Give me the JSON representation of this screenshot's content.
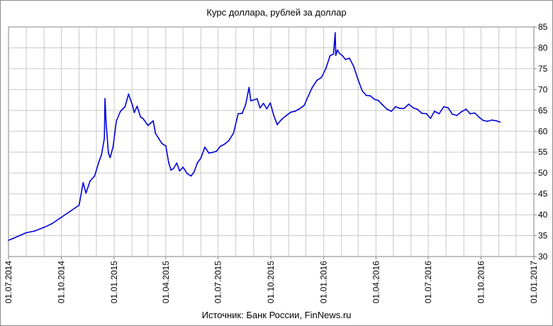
{
  "chart_data": {
    "type": "line",
    "title": "Курс доллара,  рублей за доллар",
    "source": "Источник: Банк России, FinNews.ru",
    "ylim": [
      30,
      85
    ],
    "yticks": [
      30,
      35,
      40,
      45,
      50,
      55,
      60,
      65,
      70,
      75,
      80,
      85
    ],
    "xlim": [
      "2014-07-01",
      "2017-01-01"
    ],
    "xticks": [
      "01.07.2014",
      "01.10.2014",
      "01.01.2015",
      "01.04.2015",
      "01.07.2015",
      "01.10.2015",
      "01.01.2016",
      "01.04.2016",
      "01.07.2016",
      "01.10.2016",
      "01.01.2017"
    ],
    "grid": true,
    "series": [
      {
        "color": "#0000dd",
        "x": [
          "2014-07-01",
          "2014-07-10",
          "2014-07-20",
          "2014-08-01",
          "2014-08-15",
          "2014-09-01",
          "2014-09-15",
          "2014-10-01",
          "2014-10-15",
          "2014-11-01",
          "2014-11-08",
          "2014-11-13",
          "2014-11-20",
          "2014-11-28",
          "2014-12-05",
          "2014-12-10",
          "2014-12-15",
          "2014-12-16",
          "2014-12-18",
          "2014-12-22",
          "2014-12-25",
          "2014-12-30",
          "2015-01-05",
          "2015-01-12",
          "2015-01-20",
          "2015-01-26",
          "2015-02-02",
          "2015-02-05",
          "2015-02-10",
          "2015-02-16",
          "2015-02-20",
          "2015-03-01",
          "2015-03-05",
          "2015-03-10",
          "2015-03-14",
          "2015-03-20",
          "2015-03-25",
          "2015-04-01",
          "2015-04-06",
          "2015-04-10",
          "2015-04-15",
          "2015-04-20",
          "2015-04-25",
          "2015-05-01",
          "2015-05-08",
          "2015-05-15",
          "2015-05-20",
          "2015-05-26",
          "2015-06-01",
          "2015-06-08",
          "2015-06-15",
          "2015-06-20",
          "2015-06-28",
          "2015-07-05",
          "2015-07-12",
          "2015-07-20",
          "2015-07-28",
          "2015-08-05",
          "2015-08-12",
          "2015-08-18",
          "2015-08-24",
          "2015-08-27",
          "2015-09-01",
          "2015-09-07",
          "2015-09-12",
          "2015-09-18",
          "2015-09-24",
          "2015-09-30",
          "2015-10-06",
          "2015-10-12",
          "2015-10-20",
          "2015-10-28",
          "2015-11-05",
          "2015-11-12",
          "2015-11-20",
          "2015-11-28",
          "2015-12-05",
          "2015-12-12",
          "2015-12-20",
          "2015-12-28",
          "2016-01-05",
          "2016-01-12",
          "2016-01-18",
          "2016-01-21",
          "2016-01-22",
          "2016-01-25",
          "2016-01-28",
          "2016-02-02",
          "2016-02-08",
          "2016-02-15",
          "2016-02-22",
          "2016-03-01",
          "2016-03-08",
          "2016-03-15",
          "2016-03-22",
          "2016-03-30",
          "2016-04-05",
          "2016-04-12",
          "2016-04-20",
          "2016-04-28",
          "2016-05-05",
          "2016-05-12",
          "2016-05-20",
          "2016-05-28",
          "2016-06-05",
          "2016-06-12",
          "2016-06-20",
          "2016-06-28",
          "2016-07-05",
          "2016-07-12",
          "2016-07-20",
          "2016-07-28",
          "2016-08-05",
          "2016-08-12",
          "2016-08-20",
          "2016-08-28",
          "2016-09-05",
          "2016-09-12",
          "2016-09-20",
          "2016-09-28",
          "2016-10-05",
          "2016-10-12",
          "2016-10-20",
          "2016-10-28",
          "2016-11-03"
        ],
        "y": [
          33.9,
          34.4,
          35.0,
          35.7,
          36.1,
          37.0,
          37.9,
          39.4,
          40.7,
          42.3,
          47.7,
          45.2,
          48.1,
          49.3,
          52.5,
          54.4,
          58.3,
          67.8,
          62.0,
          54.8,
          53.7,
          56.2,
          62.5,
          64.8,
          65.9,
          68.9,
          66.2,
          64.5,
          66.0,
          63.4,
          63.1,
          61.4,
          61.9,
          62.5,
          59.5,
          58.2,
          57.1,
          56.5,
          52.5,
          50.7,
          51.2,
          52.4,
          50.5,
          51.4,
          49.9,
          49.3,
          50.2,
          52.4,
          53.6,
          56.2,
          54.8,
          54.9,
          55.2,
          56.4,
          56.9,
          57.8,
          59.6,
          64.2,
          64.3,
          66.4,
          70.5,
          67.3,
          67.5,
          67.8,
          65.6,
          66.7,
          65.4,
          66.8,
          63.8,
          61.6,
          62.9,
          63.8,
          64.6,
          64.8,
          65.4,
          66.2,
          68.4,
          70.5,
          72.2,
          72.9,
          75.1,
          78.1,
          78.5,
          83.6,
          78.2,
          79.5,
          78.7,
          78.2,
          77.2,
          77.5,
          75.6,
          72.3,
          69.7,
          68.6,
          68.5,
          67.6,
          67.4,
          66.4,
          65.3,
          64.8,
          65.9,
          65.5,
          65.5,
          66.5,
          65.6,
          65.3,
          64.3,
          64.2,
          63.1,
          64.8,
          64.2,
          65.9,
          65.6,
          64.1,
          63.8,
          64.7,
          65.3,
          64.2,
          64.4,
          63.3,
          62.6,
          62.4,
          62.7,
          62.5,
          62.2
        ]
      }
    ]
  }
}
